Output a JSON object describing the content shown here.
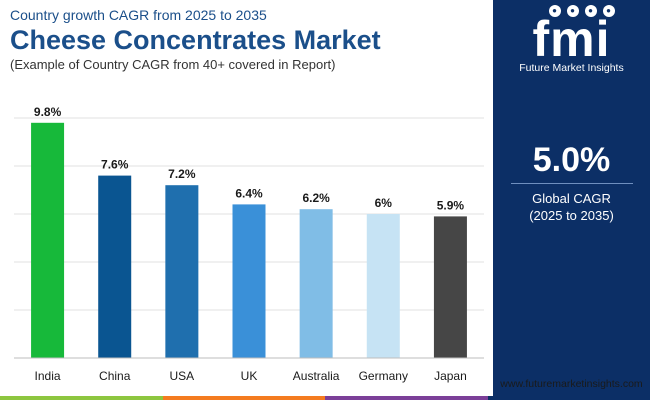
{
  "header": {
    "subtitle": "Country growth CAGR from 2025 to 2035",
    "title": "Cheese Concentrates Market",
    "note": "(Example of Country CAGR from 40+ covered in Report)"
  },
  "chart_data": {
    "type": "bar",
    "title": "Cheese Concentrates Market",
    "categories": [
      "India",
      "China",
      "USA",
      "UK",
      "Australia",
      "Germany",
      "Japan"
    ],
    "values": [
      9.8,
      7.6,
      7.2,
      6.4,
      6.2,
      6,
      5.9
    ],
    "labels": [
      "9.8%",
      "7.6%",
      "7.2%",
      "6.4%",
      "6.2%",
      "6%",
      "5.9%"
    ],
    "colors": [
      "#17b93a",
      "#0a5591",
      "#1f6fae",
      "#3a90d8",
      "#80bde6",
      "#c6e3f4",
      "#464646"
    ],
    "xlabel": "",
    "ylabel": "",
    "ylim": [
      0,
      10
    ],
    "grid": true,
    "gridlines": [
      0,
      2,
      4,
      6,
      8,
      10
    ]
  },
  "sidebar": {
    "logo_text": "fmi",
    "logo_sub": "Future Market Insights",
    "cagr_value": "5.0%",
    "cagr_label": "Global CAGR",
    "cagr_period": "(2025 to 2035)",
    "bg_color": "#0c2f66"
  },
  "footer": {
    "website": "www.futuremarketinsights.com",
    "stripe_colors": [
      "#8dc63f",
      "#f47b20",
      "#7b3f98",
      "#0c2f66"
    ]
  }
}
